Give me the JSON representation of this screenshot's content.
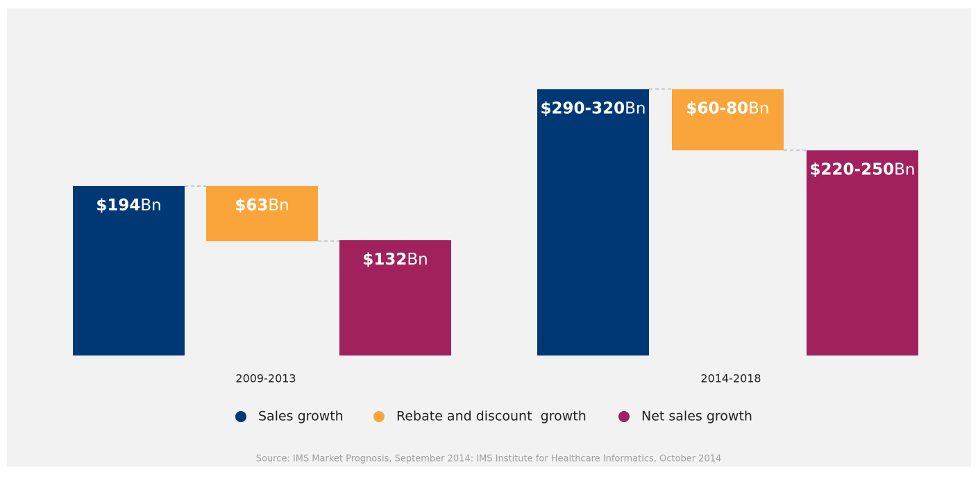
{
  "chart_data": {
    "type": "waterfall",
    "categories": [
      "2009-2013",
      "2014-2018"
    ],
    "series": [
      {
        "name": "Sales growth",
        "color": "#003876",
        "values": [
          194,
          [
            290,
            320
          ]
        ],
        "value_labels": [
          "$194Bn",
          "$290-320Bn"
        ]
      },
      {
        "name": "Rebate and discount  growth",
        "color": "#f9a53b",
        "values": [
          63,
          [
            60,
            80
          ]
        ],
        "value_labels": [
          "$63Bn",
          "$60-80Bn"
        ]
      },
      {
        "name": "Net sales growth",
        "color": "#a0215c",
        "values": [
          132,
          [
            220,
            250
          ]
        ],
        "value_labels": [
          "$132Bn",
          "$220-250Bn"
        ]
      }
    ],
    "source": "Source: IMS Market Prognosis, September 2014: IMS Institute for Healthcare Informatics, October 2014"
  }
}
